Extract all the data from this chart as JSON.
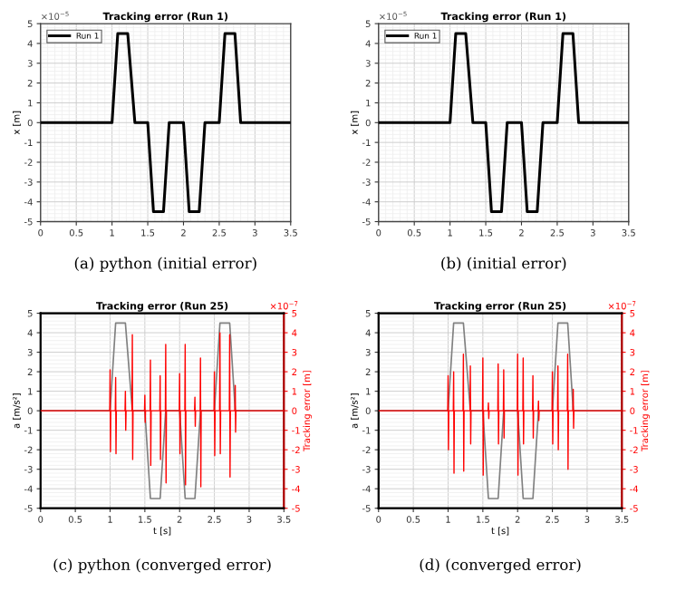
{
  "chart_data": [
    {
      "type": "line",
      "title": "Tracking error (Run 1)",
      "ylabel": "x [m]",
      "annotations": [
        "×10$^{−5}$",
        "(a) python (initial error)"
      ],
      "xlim": [
        0,
        3.5
      ],
      "ylim": [
        -5,
        5
      ],
      "xticks": [
        0,
        0.5,
        1,
        1.5,
        2,
        2.5,
        3,
        3.5
      ],
      "yticks": [
        -5,
        -4,
        -3,
        -2,
        -1,
        0,
        1,
        2,
        3,
        4,
        5
      ],
      "grid": true,
      "legend": "top left",
      "line_style": "solid",
      "series": [
        {
          "name": "Run 1",
          "color": "#000000",
          "x": [
            0,
            1.0,
            1.08,
            1.22,
            1.32,
            1.5,
            1.58,
            1.72,
            1.8,
            2.0,
            2.08,
            2.22,
            2.3,
            2.5,
            2.58,
            2.72,
            2.8,
            3.5
          ],
          "values": [
            0,
            0,
            4.5,
            4.5,
            0,
            0,
            -4.5,
            -4.5,
            0,
            0,
            -4.5,
            -4.5,
            0,
            0,
            4.5,
            4.5,
            0,
            0
          ]
        }
      ]
    },
    {
      "type": "line",
      "title": "Tracking error (Run 1)",
      "ylabel": "x [m]",
      "annotations": [
        "×10$^{−5}$",
        "(b) (initial error)"
      ],
      "xlim": [
        0,
        3.5
      ],
      "ylim": [
        -5,
        5
      ],
      "xticks": [
        0,
        0.5,
        1,
        1.5,
        2,
        2.5,
        3,
        3.5
      ],
      "yticks": [
        -5,
        -4,
        -3,
        -2,
        -1,
        0,
        1,
        2,
        3,
        4,
        5
      ],
      "grid": true,
      "legend": "top left",
      "line_style": "solid",
      "series": [
        {
          "name": "Run 1",
          "color": "#000000",
          "x": [
            0,
            1.0,
            1.08,
            1.22,
            1.32,
            1.5,
            1.58,
            1.72,
            1.8,
            2.0,
            2.08,
            2.22,
            2.3,
            2.5,
            2.58,
            2.72,
            2.8,
            3.5
          ],
          "values": [
            0,
            0,
            4.5,
            4.5,
            0,
            0,
            -4.5,
            -4.5,
            0,
            0,
            -4.5,
            -4.5,
            0,
            0,
            4.5,
            4.5,
            0,
            0
          ]
        }
      ]
    },
    {
      "type": "line",
      "title": "Tracking error (Run 25)",
      "xlabel": "t [s]",
      "ylabel": "a [m/s²]",
      "y2label": "Tracking error [m]",
      "annotations": [
        "×10$^{−7}$",
        "(c) python (converged error)"
      ],
      "xlim": [
        0,
        3.5
      ],
      "ylim": [
        -5,
        5
      ],
      "y2lim": [
        -5,
        5
      ],
      "xticks": [
        0,
        0.5,
        1,
        1.5,
        2,
        2.5,
        3,
        3.5
      ],
      "yticks": [
        -5,
        -4,
        -3,
        -2,
        -1,
        0,
        1,
        2,
        3,
        4,
        5
      ],
      "y2ticks": [
        -5,
        -4,
        -3,
        -2,
        -1,
        0,
        1,
        2,
        3,
        4,
        5
      ],
      "grid": true,
      "line_style": "solid",
      "series": [
        {
          "color": "#808080",
          "x": [
            0,
            1.0,
            1.08,
            1.22,
            1.32,
            1.5,
            1.58,
            1.72,
            1.8,
            2.0,
            2.08,
            2.22,
            2.3,
            2.5,
            2.58,
            2.72,
            2.8,
            3.5
          ],
          "values": [
            0,
            0,
            4.5,
            4.5,
            0,
            0,
            -4.5,
            -4.5,
            0,
            0,
            -4.5,
            -4.5,
            0,
            0,
            4.5,
            4.5,
            0,
            0
          ]
        },
        {
          "color": "#ff0000",
          "axis": "y2",
          "x": [
            0,
            0.995,
            1.0,
            1.005,
            1.01,
            1.075,
            1.08,
            1.085,
            1.09,
            1.215,
            1.22,
            1.225,
            1.23,
            1.315,
            1.32,
            1.325,
            1.33,
            1.495,
            1.5,
            1.505,
            1.51,
            1.575,
            1.58,
            1.585,
            1.59,
            1.715,
            1.72,
            1.725,
            1.73,
            1.795,
            1.8,
            1.805,
            1.81,
            1.995,
            2.0,
            2.005,
            2.01,
            2.075,
            2.08,
            2.085,
            2.09,
            2.215,
            2.22,
            2.225,
            2.23,
            2.295,
            2.3,
            2.305,
            2.31,
            2.495,
            2.5,
            2.505,
            2.51,
            2.575,
            2.58,
            2.585,
            2.59,
            2.715,
            2.72,
            2.725,
            2.73,
            2.795,
            2.8,
            2.805,
            2.81,
            3.5
          ],
          "values": [
            0,
            0,
            2.1,
            -2.1,
            0,
            0,
            1.7,
            -2.2,
            0,
            0,
            1.0,
            -1.0,
            0,
            0,
            3.9,
            -2.5,
            0,
            0,
            0.8,
            -0.6,
            0,
            0,
            2.6,
            -2.8,
            0,
            0,
            1.8,
            -2.5,
            0,
            0,
            3.4,
            -3.7,
            0,
            0,
            1.9,
            -2.2,
            0,
            0,
            3.4,
            -3.8,
            0,
            0,
            0.7,
            -0.8,
            0,
            0,
            2.7,
            -3.9,
            0,
            0,
            2.0,
            -2.3,
            0,
            0,
            4.0,
            -2.2,
            0,
            0,
            3.9,
            -3.4,
            0,
            0,
            1.3,
            -1.1,
            0,
            0
          ]
        }
      ]
    },
    {
      "type": "line",
      "title": "Tracking error (Run 25)",
      "xlabel": "t [s]",
      "ylabel": "a [m/s²]",
      "y2label": "Tracking error [m]",
      "annotations": [
        "×10$^{−7}$",
        "(d) (converged error)"
      ],
      "xlim": [
        0,
        3.5
      ],
      "ylim": [
        -5,
        5
      ],
      "y2lim": [
        -5,
        5
      ],
      "xticks": [
        0,
        0.5,
        1,
        1.5,
        2,
        2.5,
        3,
        3.5
      ],
      "yticks": [
        -5,
        -4,
        -3,
        -2,
        -1,
        0,
        1,
        2,
        3,
        4,
        5
      ],
      "y2ticks": [
        -5,
        -4,
        -3,
        -2,
        -1,
        0,
        1,
        2,
        3,
        4,
        5
      ],
      "grid": true,
      "line_style": "solid",
      "series": [
        {
          "color": "#808080",
          "x": [
            0,
            1.0,
            1.08,
            1.22,
            1.32,
            1.5,
            1.58,
            1.72,
            1.8,
            2.0,
            2.08,
            2.22,
            2.3,
            2.5,
            2.58,
            2.72,
            2.8,
            3.5
          ],
          "values": [
            0,
            0,
            4.5,
            4.5,
            0,
            0,
            -4.5,
            -4.5,
            0,
            0,
            -4.5,
            -4.5,
            0,
            0,
            4.5,
            4.5,
            0,
            0
          ]
        },
        {
          "color": "#ff0000",
          "axis": "y2",
          "x": [
            0,
            0.995,
            1.0,
            1.005,
            1.01,
            1.075,
            1.08,
            1.085,
            1.09,
            1.215,
            1.22,
            1.225,
            1.23,
            1.315,
            1.32,
            1.325,
            1.33,
            1.495,
            1.5,
            1.505,
            1.51,
            1.575,
            1.58,
            1.585,
            1.59,
            1.715,
            1.72,
            1.725,
            1.73,
            1.795,
            1.8,
            1.805,
            1.81,
            1.995,
            2.0,
            2.005,
            2.01,
            2.075,
            2.08,
            2.085,
            2.09,
            2.215,
            2.22,
            2.225,
            2.23,
            2.295,
            2.3,
            2.305,
            2.31,
            2.495,
            2.5,
            2.505,
            2.51,
            2.575,
            2.58,
            2.585,
            2.59,
            2.715,
            2.72,
            2.725,
            2.73,
            2.795,
            2.8,
            2.805,
            2.81,
            3.5
          ],
          "values": [
            0,
            0,
            1.8,
            -2.0,
            0,
            0,
            2.0,
            -3.2,
            0,
            0,
            2.9,
            -3.1,
            0,
            0,
            2.3,
            -1.7,
            0,
            0,
            2.7,
            -3.3,
            0,
            0,
            0.4,
            -0.4,
            0,
            0,
            2.4,
            -1.7,
            0,
            0,
            2.1,
            -1.4,
            0,
            0,
            2.9,
            -3.3,
            0,
            0,
            2.7,
            -1.7,
            0,
            0,
            1.8,
            -1.4,
            0,
            0,
            0.5,
            -0.5,
            0,
            0,
            2.0,
            -1.7,
            0,
            0,
            2.3,
            -2.0,
            0,
            0,
            2.9,
            -3.0,
            0,
            0,
            1.1,
            -0.9,
            0,
            0
          ]
        }
      ]
    }
  ]
}
